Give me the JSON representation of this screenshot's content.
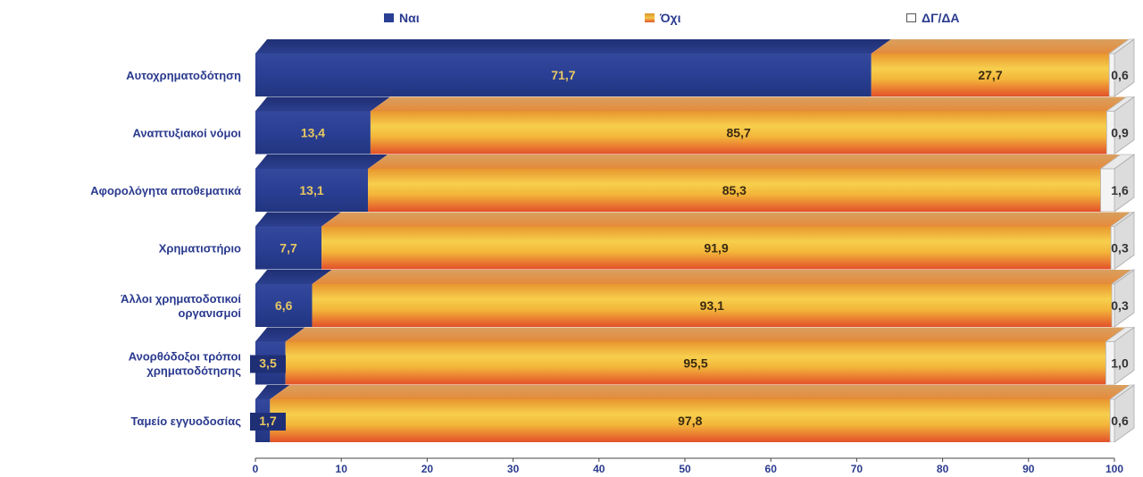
{
  "legend": {
    "yes": "Ναι",
    "no": "Όχι",
    "na": "ΔΓ/ΔΑ"
  },
  "colors": {
    "yes": "#2a3f93",
    "no_top": "#e8962e",
    "no_mid": "#f7cf4d",
    "no_bottom": "#e2502a",
    "na": "#f2f2f2"
  },
  "chart_data": {
    "type": "bar",
    "orientation": "horizontal",
    "stacked": true,
    "categories": [
      "Αυτοχρηματοδότηση",
      "Αναπτυξιακοί νόμοι",
      "Αφορολόγητα αποθεματικά",
      "Χρηματιστήριο",
      "Άλλοι χρηματοδοτικοί οργανισμοί",
      "Ανορθόδοξοι τρόποι χρηματοδότησης",
      "Ταμείο εγγυοδοσίας"
    ],
    "series": [
      {
        "name": "Ναι",
        "values": [
          71.7,
          13.4,
          13.1,
          7.7,
          6.6,
          3.5,
          1.7
        ]
      },
      {
        "name": "Όχι",
        "values": [
          27.7,
          85.7,
          85.3,
          91.9,
          93.1,
          95.5,
          97.8
        ]
      },
      {
        "name": "ΔΓ/ΔΑ",
        "values": [
          0.6,
          0.9,
          1.6,
          0.3,
          0.3,
          1.0,
          0.6
        ]
      }
    ],
    "labels": {
      "yes": [
        "71,7",
        "13,4",
        "13,1",
        "7,7",
        "6,6",
        "3,5",
        "1,7"
      ],
      "no": [
        "27,7",
        "85,7",
        "85,3",
        "91,9",
        "93,1",
        "95,5",
        "97,8"
      ],
      "na": [
        "0,6",
        "0,9",
        "1,6",
        "0,3",
        "0,3",
        "1,0",
        "0,6"
      ]
    },
    "xlim": [
      0,
      100
    ],
    "xticks": [
      0,
      10,
      20,
      30,
      40,
      50,
      60,
      70,
      80,
      90,
      100
    ],
    "legend_position": "top"
  }
}
